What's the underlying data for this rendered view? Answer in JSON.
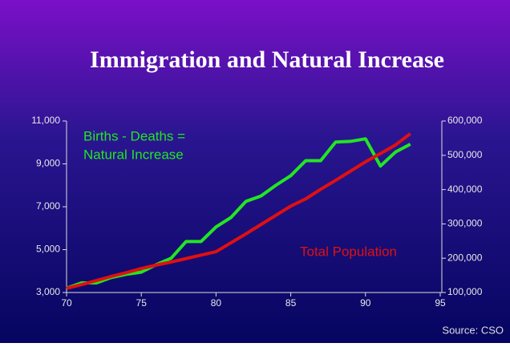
{
  "chart_data": {
    "type": "line",
    "title": "Immigration and Natural Increase",
    "x": [
      70,
      71,
      72,
      73,
      74,
      75,
      76,
      77,
      78,
      79,
      80,
      81,
      82,
      83,
      84,
      85,
      86,
      87,
      88,
      89,
      90,
      91,
      92,
      93
    ],
    "xlim": [
      70,
      95
    ],
    "xticks": [
      70,
      75,
      80,
      85,
      90,
      95
    ],
    "ylim": [
      3000,
      11000
    ],
    "yticks": [
      {
        "value": 3000,
        "label": "3,000"
      },
      {
        "value": 5000,
        "label": "5,000"
      },
      {
        "value": 7000,
        "label": "7,000"
      },
      {
        "value": 9000,
        "label": "9,000"
      },
      {
        "value": 11000,
        "label": "11,000"
      }
    ],
    "y2lim": [
      100000,
      600000
    ],
    "y2ticks": [
      {
        "value": 100000,
        "label": "100,000"
      },
      {
        "value": 200000,
        "label": "200,000"
      },
      {
        "value": 300000,
        "label": "300,000"
      },
      {
        "value": 400000,
        "label": "400,000"
      },
      {
        "value": 500000,
        "label": "500,000"
      },
      {
        "value": 600000,
        "label": "600,000"
      }
    ],
    "series": [
      {
        "name": [
          "Births - Deaths =",
          "Natural Increase"
        ],
        "color": "#22e622",
        "values": [
          3200,
          3450,
          3450,
          3700,
          3850,
          3950,
          4300,
          4600,
          5380,
          5380,
          6060,
          6500,
          7250,
          7500,
          8000,
          8450,
          9150,
          9150,
          10020,
          10050,
          10170,
          8900,
          9550,
          9920
        ]
      },
      {
        "name": "Total Population",
        "color": "#e01010",
        "axis": "y2",
        "values": [
          112000,
          123000,
          135000,
          147000,
          158000,
          170000,
          180000,
          189000,
          199000,
          209000,
          219000,
          245000,
          271000,
          298000,
          325000,
          352000,
          373000,
          401000,
          427000,
          454000,
          481000,
          505000,
          530000,
          563000
        ]
      }
    ],
    "source": "Source: CSO"
  }
}
